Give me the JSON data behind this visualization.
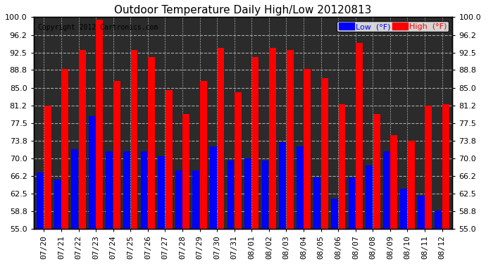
{
  "title": "Outdoor Temperature Daily High/Low 20120813",
  "copyright": "Copyright 2012 Cartronics.com",
  "legend_low": "Low  (°F)",
  "legend_high": "High  (°F)",
  "dates": [
    "07/20",
    "07/21",
    "07/22",
    "07/23",
    "07/24",
    "07/25",
    "07/26",
    "07/27",
    "07/28",
    "07/29",
    "07/30",
    "07/31",
    "08/01",
    "08/02",
    "08/03",
    "08/04",
    "08/05",
    "08/06",
    "08/07",
    "08/08",
    "08/09",
    "08/10",
    "08/11",
    "08/12"
  ],
  "high": [
    81.2,
    89.0,
    93.0,
    99.5,
    86.5,
    93.0,
    91.5,
    84.5,
    79.5,
    86.5,
    93.5,
    84.0,
    91.5,
    93.5,
    93.0,
    89.0,
    87.0,
    81.5,
    94.5,
    79.5,
    75.0,
    73.8,
    81.2,
    81.5
  ],
  "low": [
    67.0,
    65.5,
    72.0,
    79.0,
    71.5,
    71.5,
    71.5,
    70.5,
    67.5,
    67.5,
    72.5,
    69.5,
    70.0,
    69.5,
    73.5,
    72.5,
    66.0,
    61.5,
    66.0,
    68.5,
    71.5,
    63.5,
    62.0,
    59.0
  ],
  "ylim_min": 55.0,
  "ylim_max": 100.0,
  "yticks": [
    55.0,
    58.8,
    62.5,
    66.2,
    70.0,
    73.8,
    77.5,
    81.2,
    85.0,
    88.8,
    92.5,
    96.2,
    100.0
  ],
  "bg_color": "#ffffff",
  "plot_bg_color": "#2b2b2b",
  "grid_color": "#aaaaaa",
  "high_color": "#ff0000",
  "low_color": "#0000ff",
  "title_fontsize": 11,
  "copyright_fontsize": 7,
  "tick_fontsize": 8,
  "legend_fontsize": 8
}
